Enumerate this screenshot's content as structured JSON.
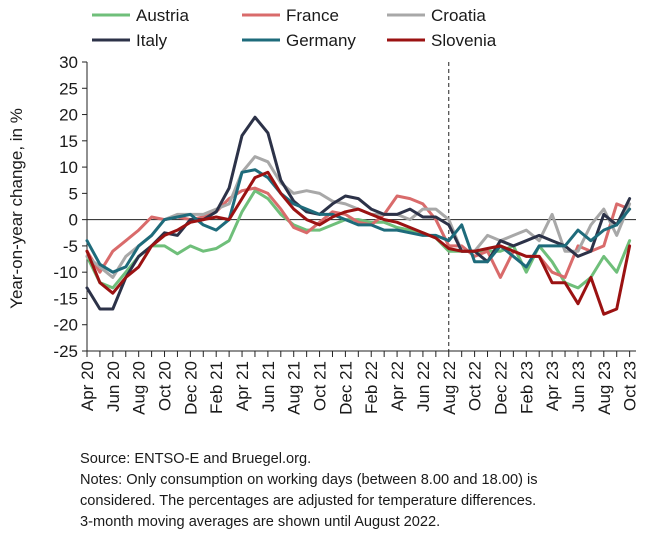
{
  "chart_data": {
    "type": "line",
    "ylabel": "Year-on-year change, in %",
    "xlabel": "",
    "ylim": [
      -25,
      30
    ],
    "yticks": [
      30,
      25,
      20,
      15,
      10,
      5,
      0,
      -5,
      -10,
      -15,
      -20,
      -25
    ],
    "x": [
      "Apr 20",
      "May 20",
      "Jun 20",
      "Jul 20",
      "Aug 20",
      "Sep 20",
      "Oct 20",
      "Nov 20",
      "Dec 20",
      "Jan 21",
      "Feb 21",
      "Mar 21",
      "Apr 21",
      "May 21",
      "Jun 21",
      "Jul 21",
      "Aug 21",
      "Sep 21",
      "Oct 21",
      "Nov 21",
      "Dec 21",
      "Jan 22",
      "Feb 22",
      "Mar 22",
      "Apr 22",
      "May 22",
      "Jun 22",
      "Jul 22",
      "Aug 22",
      "Sep 22",
      "Oct 22",
      "Nov 22",
      "Dec 22",
      "Jan 23",
      "Feb 23",
      "Mar 23",
      "Apr 23",
      "May 23",
      "Jun 23",
      "Jul 23",
      "Aug 23",
      "Sep 23",
      "Oct 23"
    ],
    "xtick_labels": [
      "Apr 20",
      "Jun 20",
      "Aug 20",
      "Oct 20",
      "Dec 20",
      "Feb 21",
      "Apr 21",
      "Jun 21",
      "Aug 21",
      "Oct 21",
      "Dec 21",
      "Feb 22",
      "Apr 22",
      "Jun 22",
      "Aug 22",
      "Oct 22",
      "Dec 22",
      "Feb 23",
      "Apr 23",
      "Jun 23",
      "Aug 23",
      "Oct 23"
    ],
    "marker_line": "Aug 22",
    "zero_line": true,
    "grid": false,
    "legend_position": "top",
    "series": [
      {
        "name": "Austria",
        "color": "#6fbf7a",
        "values": [
          -7,
          -12,
          -13,
          -10,
          -7,
          -5,
          -5,
          -6.5,
          -5,
          -6,
          -5.5,
          -4,
          1.5,
          5.5,
          4,
          1,
          -1,
          -2,
          -2,
          -1,
          0,
          0,
          -0.5,
          -0.5,
          -1.5,
          -2,
          -2.5,
          -3.5,
          -6,
          -6,
          -6,
          -6,
          -6,
          -5,
          -10,
          -5,
          -8,
          -12,
          -13,
          -11,
          -7,
          -10,
          -4
        ]
      },
      {
        "name": "France",
        "color": "#d96b6b",
        "values": [
          -6,
          -10,
          -6,
          -4,
          -2,
          0.5,
          0,
          0.5,
          0,
          0.5,
          1.5,
          4,
          5.5,
          6,
          5,
          2,
          -1.5,
          -2.5,
          -0.5,
          1.5,
          1,
          -0.5,
          -1,
          1,
          4.5,
          4,
          3,
          0,
          -5,
          -5,
          -7,
          -6,
          -11,
          -6,
          -7,
          -7,
          -10,
          -11,
          -5,
          -6,
          -5,
          3,
          2
        ]
      },
      {
        "name": "Croatia",
        "color": "#a8a8a8",
        "values": [
          -7,
          -9,
          -11,
          -7,
          -5,
          -3,
          0,
          1,
          1,
          1,
          2,
          3,
          9,
          12,
          11,
          7,
          5,
          5.5,
          5,
          3.5,
          3,
          2,
          1,
          1,
          1,
          0,
          2,
          2,
          0,
          -6,
          -6,
          -3,
          -4,
          -3,
          -2,
          -4,
          1,
          -6,
          -6,
          -1,
          2,
          -3,
          3
        ]
      },
      {
        "name": "Italy",
        "color": "#2c3248",
        "values": [
          -13,
          -17,
          -17,
          -11,
          -7,
          -5,
          -2.5,
          -3,
          0,
          0,
          1.5,
          6,
          16,
          19.5,
          16.5,
          7.5,
          3.5,
          1.5,
          1,
          3,
          4.5,
          4,
          2,
          1,
          1,
          2,
          0.5,
          0.5,
          -1,
          -6,
          -6,
          -8,
          -4,
          -5,
          -4,
          -3,
          -4,
          -5,
          -7,
          -6,
          1,
          -1,
          4
        ]
      },
      {
        "name": "Germany",
        "color": "#1e6b7b",
        "values": [
          -4,
          -8.5,
          -10,
          -9,
          -5,
          -3,
          0,
          0.5,
          1,
          -1,
          -2,
          0,
          9,
          9.5,
          8,
          5,
          3,
          2,
          1,
          1,
          0,
          -1,
          -1,
          -2,
          -2,
          -2.5,
          -3,
          -3,
          -4,
          -1,
          -8,
          -8,
          -5,
          -7,
          -9,
          -5,
          -5,
          -5,
          -2,
          -4,
          -2,
          -1,
          2
        ]
      },
      {
        "name": "Slovenia",
        "color": "#9b1212",
        "values": [
          -6,
          -12,
          -14,
          -11,
          -9,
          -5,
          -3,
          -2,
          -0.5,
          0,
          0.5,
          0,
          4,
          8,
          9,
          5,
          2,
          0,
          -1,
          0.5,
          1.5,
          2,
          1,
          0,
          -0.5,
          -1.5,
          -2.5,
          -3.5,
          -5.5,
          -6,
          -6,
          -5.5,
          -5,
          -6,
          -7,
          -7,
          -12,
          -12,
          -16,
          -11,
          -18,
          -17,
          -5
        ]
      }
    ]
  },
  "notes": {
    "source": "Source: ENTSO-E and Bruegel.org.",
    "line1": "Notes: Only consumption on working days (between 8.00 and 18.00) is",
    "line2": "considered. The percentages are adjusted for temperature differences.",
    "line3": "3-month moving averages are shown until August 2022."
  }
}
